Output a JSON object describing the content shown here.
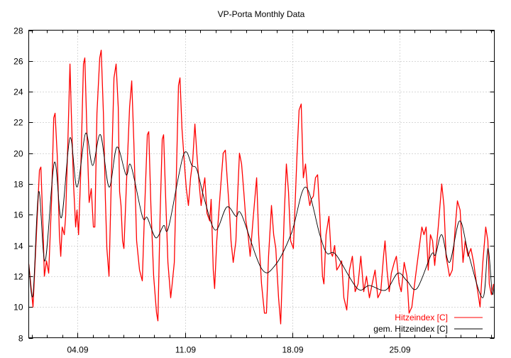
{
  "chart_data": {
    "type": "line",
    "title": "VP-Porta Monthly Data",
    "xlabel": "",
    "ylabel": "",
    "xlim": [
      0.81,
      31.19
    ],
    "ylim": [
      8,
      28
    ],
    "grid": true,
    "legend_placement": "bottom-right",
    "y_ticks": [
      8,
      10,
      12,
      14,
      16,
      18,
      20,
      22,
      24,
      26,
      28
    ],
    "x_ticks": [
      {
        "value": 4,
        "label": "04.09"
      },
      {
        "value": 11,
        "label": "11.09"
      },
      {
        "value": 18,
        "label": "18.09"
      },
      {
        "value": 25,
        "label": "25.09"
      }
    ],
    "x_minor_tick_step_days": 1,
    "series": [
      {
        "name": "Hitzeindex [C]",
        "color": "#ff0000",
        "smooth": false,
        "points": [
          [
            0.81,
            12.8
          ],
          [
            1.09,
            10.0
          ],
          [
            1.37,
            16.0
          ],
          [
            1.51,
            18.9
          ],
          [
            1.6,
            19.1
          ],
          [
            1.74,
            15.2
          ],
          [
            1.83,
            12.0
          ],
          [
            1.97,
            13.0
          ],
          [
            2.11,
            12.2
          ],
          [
            2.3,
            17.0
          ],
          [
            2.44,
            22.3
          ],
          [
            2.53,
            22.6
          ],
          [
            2.67,
            19.8
          ],
          [
            2.81,
            14.7
          ],
          [
            2.9,
            13.3
          ],
          [
            2.99,
            15.2
          ],
          [
            3.13,
            14.7
          ],
          [
            3.22,
            15.9
          ],
          [
            3.36,
            20.7
          ],
          [
            3.5,
            25.8
          ],
          [
            3.59,
            22.6
          ],
          [
            3.73,
            18.0
          ],
          [
            3.87,
            15.2
          ],
          [
            3.96,
            16.3
          ],
          [
            4.06,
            14.7
          ],
          [
            4.19,
            18.4
          ],
          [
            4.38,
            25.8
          ],
          [
            4.47,
            26.2
          ],
          [
            4.61,
            21.2
          ],
          [
            4.75,
            16.8
          ],
          [
            4.89,
            17.7
          ],
          [
            5.03,
            15.2
          ],
          [
            5.12,
            15.2
          ],
          [
            5.26,
            22.6
          ],
          [
            5.44,
            26.2
          ],
          [
            5.54,
            26.7
          ],
          [
            5.68,
            22.6
          ],
          [
            5.81,
            17.0
          ],
          [
            5.91,
            13.8
          ],
          [
            6.05,
            12.0
          ],
          [
            6.19,
            18.0
          ],
          [
            6.37,
            24.9
          ],
          [
            6.51,
            25.8
          ],
          [
            6.65,
            23.0
          ],
          [
            6.74,
            17.5
          ],
          [
            6.83,
            16.6
          ],
          [
            6.93,
            14.3
          ],
          [
            7.02,
            13.8
          ],
          [
            7.2,
            18.4
          ],
          [
            7.39,
            23.0
          ],
          [
            7.53,
            24.7
          ],
          [
            7.67,
            20.7
          ],
          [
            7.85,
            14.3
          ],
          [
            8.04,
            12.4
          ],
          [
            8.22,
            11.7
          ],
          [
            8.36,
            16.0
          ],
          [
            8.55,
            21.2
          ],
          [
            8.64,
            21.4
          ],
          [
            8.78,
            16.6
          ],
          [
            8.96,
            12.0
          ],
          [
            9.15,
            9.6
          ],
          [
            9.24,
            9.1
          ],
          [
            9.38,
            16.0
          ],
          [
            9.52,
            20.9
          ],
          [
            9.61,
            21.2
          ],
          [
            9.75,
            17.0
          ],
          [
            9.89,
            12.9
          ],
          [
            10.07,
            10.6
          ],
          [
            10.17,
            11.5
          ],
          [
            10.31,
            12.9
          ],
          [
            10.44,
            18.4
          ],
          [
            10.58,
            24.4
          ],
          [
            10.68,
            24.9
          ],
          [
            10.81,
            21.6
          ],
          [
            11.0,
            18.9
          ],
          [
            11.09,
            17.7
          ],
          [
            11.23,
            16.6
          ],
          [
            11.37,
            18.4
          ],
          [
            11.51,
            19.5
          ],
          [
            11.65,
            21.9
          ],
          [
            11.79,
            19.8
          ],
          [
            11.93,
            18.0
          ],
          [
            12.06,
            16.6
          ],
          [
            12.16,
            17.5
          ],
          [
            12.3,
            18.4
          ],
          [
            12.44,
            16.1
          ],
          [
            12.62,
            15.6
          ],
          [
            12.71,
            17.0
          ],
          [
            12.85,
            12.4
          ],
          [
            12.94,
            11.2
          ],
          [
            13.08,
            14.3
          ],
          [
            13.31,
            17.5
          ],
          [
            13.5,
            20.0
          ],
          [
            13.64,
            20.2
          ],
          [
            13.78,
            18.0
          ],
          [
            13.92,
            16.0
          ],
          [
            14.01,
            14.3
          ],
          [
            14.15,
            12.9
          ],
          [
            14.33,
            14.3
          ],
          [
            14.43,
            17.0
          ],
          [
            14.56,
            20.0
          ],
          [
            14.7,
            19.3
          ],
          [
            14.84,
            17.5
          ],
          [
            14.98,
            15.6
          ],
          [
            15.12,
            14.7
          ],
          [
            15.26,
            13.3
          ],
          [
            15.44,
            15.6
          ],
          [
            15.54,
            16.8
          ],
          [
            15.68,
            18.4
          ],
          [
            15.81,
            14.7
          ],
          [
            16.0,
            11.5
          ],
          [
            16.19,
            9.6
          ],
          [
            16.32,
            9.6
          ],
          [
            16.46,
            13.3
          ],
          [
            16.65,
            16.6
          ],
          [
            16.79,
            14.7
          ],
          [
            16.93,
            13.8
          ],
          [
            17.11,
            10.6
          ],
          [
            17.25,
            8.9
          ],
          [
            17.48,
            16.0
          ],
          [
            17.62,
            19.3
          ],
          [
            17.76,
            17.5
          ],
          [
            17.9,
            14.3
          ],
          [
            18.08,
            13.8
          ],
          [
            18.31,
            19.8
          ],
          [
            18.45,
            22.8
          ],
          [
            18.59,
            23.2
          ],
          [
            18.73,
            18.4
          ],
          [
            18.87,
            19.3
          ],
          [
            19.01,
            17.5
          ],
          [
            19.15,
            16.6
          ],
          [
            19.24,
            17.0
          ],
          [
            19.38,
            17.2
          ],
          [
            19.52,
            18.4
          ],
          [
            19.66,
            18.6
          ],
          [
            19.8,
            16.0
          ],
          [
            19.98,
            12.0
          ],
          [
            20.07,
            11.5
          ],
          [
            20.21,
            14.7
          ],
          [
            20.4,
            15.9
          ],
          [
            20.54,
            13.5
          ],
          [
            20.63,
            13.3
          ],
          [
            20.77,
            14.0
          ],
          [
            20.91,
            12.4
          ],
          [
            21.09,
            12.7
          ],
          [
            21.23,
            13.0
          ],
          [
            21.37,
            10.6
          ],
          [
            21.56,
            9.8
          ],
          [
            21.74,
            12.4
          ],
          [
            21.93,
            13.3
          ],
          [
            22.11,
            11.0
          ],
          [
            22.3,
            11.5
          ],
          [
            22.48,
            13.3
          ],
          [
            22.67,
            11.0
          ],
          [
            22.85,
            12.0
          ],
          [
            23.04,
            10.6
          ],
          [
            23.22,
            11.5
          ],
          [
            23.41,
            12.4
          ],
          [
            23.59,
            10.6
          ],
          [
            23.78,
            11.0
          ],
          [
            23.96,
            13.3
          ],
          [
            24.06,
            14.3
          ],
          [
            24.19,
            12.4
          ],
          [
            24.33,
            11.0
          ],
          [
            24.47,
            12.2
          ],
          [
            24.66,
            12.9
          ],
          [
            24.8,
            13.3
          ],
          [
            24.98,
            11.5
          ],
          [
            25.12,
            11.0
          ],
          [
            25.31,
            12.9
          ],
          [
            25.49,
            12.0
          ],
          [
            25.63,
            9.6
          ],
          [
            25.81,
            10.0
          ],
          [
            26.05,
            12.0
          ],
          [
            26.28,
            13.8
          ],
          [
            26.46,
            15.2
          ],
          [
            26.6,
            14.7
          ],
          [
            26.74,
            15.2
          ],
          [
            26.88,
            12.4
          ],
          [
            27.02,
            14.7
          ],
          [
            27.16,
            14.3
          ],
          [
            27.3,
            12.7
          ],
          [
            27.53,
            15.2
          ],
          [
            27.76,
            18.0
          ],
          [
            27.9,
            16.6
          ],
          [
            28.04,
            13.3
          ],
          [
            28.27,
            12.0
          ],
          [
            28.45,
            12.4
          ],
          [
            28.64,
            15.2
          ],
          [
            28.78,
            16.9
          ],
          [
            28.96,
            16.3
          ],
          [
            29.15,
            12.9
          ],
          [
            29.29,
            14.3
          ],
          [
            29.47,
            13.3
          ],
          [
            29.66,
            13.8
          ],
          [
            29.84,
            12.9
          ],
          [
            30.03,
            11.5
          ],
          [
            30.26,
            10.0
          ],
          [
            30.44,
            12.9
          ],
          [
            30.63,
            15.2
          ],
          [
            30.77,
            14.3
          ],
          [
            30.86,
            11.5
          ],
          [
            31.0,
            10.8
          ],
          [
            31.14,
            11.5
          ]
        ]
      },
      {
        "name": "gem. Hitzeindex [C]",
        "color": "#000000",
        "smooth": true,
        "points": [
          [
            0.81,
            12.8
          ],
          [
            1.09,
            10.8
          ],
          [
            1.46,
            17.5
          ],
          [
            1.88,
            13.0
          ],
          [
            2.48,
            19.4
          ],
          [
            2.94,
            15.8
          ],
          [
            3.5,
            21.0
          ],
          [
            3.96,
            17.8
          ],
          [
            4.52,
            21.3
          ],
          [
            4.98,
            19.2
          ],
          [
            5.49,
            21.2
          ],
          [
            6.05,
            17.8
          ],
          [
            6.56,
            20.4
          ],
          [
            7.16,
            18.6
          ],
          [
            7.48,
            19.2
          ],
          [
            8.22,
            15.9
          ],
          [
            8.55,
            15.8
          ],
          [
            9.1,
            14.5
          ],
          [
            9.61,
            15.3
          ],
          [
            9.94,
            15.2
          ],
          [
            10.91,
            19.9
          ],
          [
            11.46,
            19.2
          ],
          [
            11.79,
            18.9
          ],
          [
            12.3,
            16.9
          ],
          [
            12.99,
            15.0
          ],
          [
            13.73,
            16.5
          ],
          [
            14.33,
            15.9
          ],
          [
            14.7,
            16.0
          ],
          [
            16.0,
            12.5
          ],
          [
            16.88,
            12.7
          ],
          [
            17.95,
            14.8
          ],
          [
            18.87,
            17.8
          ],
          [
            19.8,
            14.7
          ],
          [
            20.26,
            13.5
          ],
          [
            20.86,
            13.4
          ],
          [
            22.25,
            11.2
          ],
          [
            23.04,
            11.4
          ],
          [
            24.1,
            11.1
          ],
          [
            24.89,
            12.2
          ],
          [
            25.49,
            11.7
          ],
          [
            26.14,
            11.2
          ],
          [
            27.07,
            13.4
          ],
          [
            27.35,
            13.4
          ],
          [
            27.76,
            14.7
          ],
          [
            28.27,
            12.9
          ],
          [
            28.92,
            15.6
          ],
          [
            29.52,
            13.4
          ],
          [
            30.44,
            10.6
          ],
          [
            30.77,
            13.8
          ],
          [
            31.05,
            10.9
          ],
          [
            31.19,
            11.5
          ]
        ]
      }
    ]
  }
}
